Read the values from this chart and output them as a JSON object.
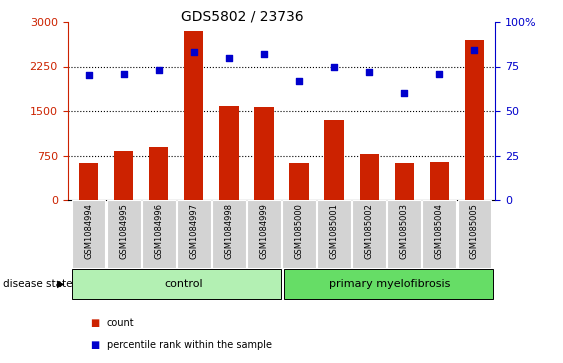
{
  "title": "GDS5802 / 23736",
  "samples": [
    "GSM1084994",
    "GSM1084995",
    "GSM1084996",
    "GSM1084997",
    "GSM1084998",
    "GSM1084999",
    "GSM1085000",
    "GSM1085001",
    "GSM1085002",
    "GSM1085003",
    "GSM1085004",
    "GSM1085005"
  ],
  "bar_values": [
    620,
    820,
    900,
    2850,
    1580,
    1560,
    620,
    1350,
    780,
    620,
    640,
    2700
  ],
  "percentile_values": [
    70,
    71,
    73,
    83,
    80,
    82,
    67,
    75,
    72,
    60,
    71,
    84
  ],
  "bar_color": "#cc2200",
  "dot_color": "#0000cc",
  "left_yaxis": {
    "min": 0,
    "max": 3000,
    "ticks": [
      0,
      750,
      1500,
      2250,
      3000
    ],
    "color": "#cc2200"
  },
  "right_yaxis": {
    "min": 0,
    "max": 100,
    "ticks": [
      0,
      25,
      50,
      75,
      100
    ],
    "color": "#0000cc"
  },
  "grid_lines": [
    750,
    1500,
    2250
  ],
  "background_color": "#ffffff",
  "label_disease_state": "disease state",
  "legend_count": "count",
  "legend_percentile": "percentile rank within the sample",
  "tick_bg_color": "#d3d3d3",
  "control_color": "#b3f0b3",
  "myelofibrosis_color": "#66dd66",
  "control_label": "control",
  "myelofibrosis_label": "primary myelofibrosis",
  "n_control": 6,
  "n_myelofibrosis": 6
}
